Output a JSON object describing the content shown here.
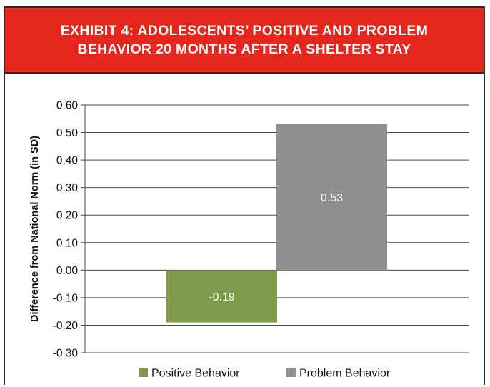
{
  "header": {
    "title": "EXHIBIT 4: ADOLESCENTS’ POSITIVE AND PROBLEM BEHAVIOR 20 MONTHS AFTER A SHELTER STAY"
  },
  "colors": {
    "header_bg": "#e5261d",
    "positive": "#7f9a4a",
    "problem": "#8f8f8f",
    "grid": "#4a4a4a"
  },
  "chart_data": {
    "type": "bar",
    "title": "EXHIBIT 4: ADOLESCENTS’ POSITIVE AND PROBLEM BEHAVIOR 20 MONTHS AFTER A SHELTER STAY",
    "xlabel": "",
    "ylabel": "Difference from National Norm (in SD)",
    "ylim": [
      -0.3,
      0.6
    ],
    "yticks": [
      "0.60",
      "0.50",
      "0.40",
      "0.30",
      "0.20",
      "0.10",
      "0.00",
      "-0.10",
      "-0.20",
      "-0.30"
    ],
    "grid": true,
    "legend_position": "bottom",
    "series": [
      {
        "name": "Positive Behavior",
        "value": -0.19,
        "label": "-0.19",
        "color": "#7f9a4a"
      },
      {
        "name": "Problem Behavior",
        "value": 0.53,
        "label": "0.53",
        "color": "#8f8f8f"
      }
    ]
  }
}
